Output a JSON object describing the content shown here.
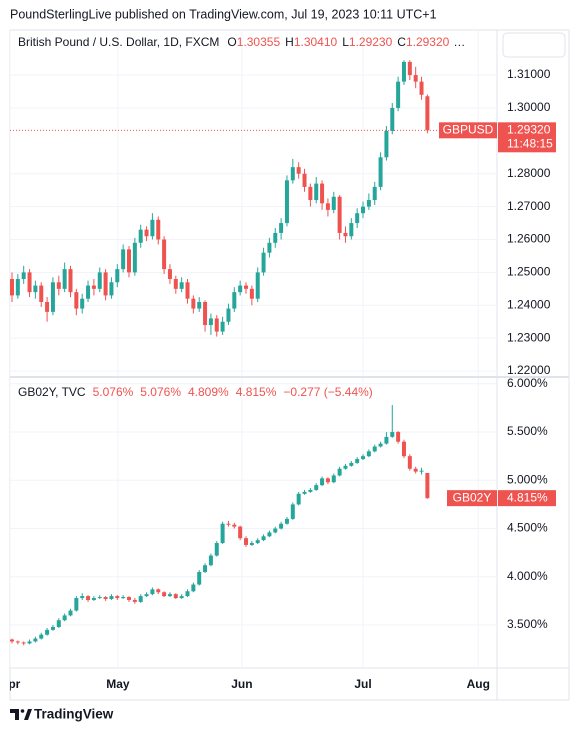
{
  "header": {
    "published": "PoundSterlingLive published on TradingView.com, Jul 19, 2023 10:11 UTC+1",
    "brand": "TradingView"
  },
  "chart_data": [
    {
      "type": "candlestick",
      "title": "British Pound / U.S. Dollar, 1D, FXCM",
      "legend": [
        {
          "key": "O",
          "value": "1.30355"
        },
        {
          "key": "H",
          "value": "1.30410"
        },
        {
          "key": "L",
          "value": "1.29230"
        },
        {
          "key": "C",
          "value": "1.29320"
        }
      ],
      "legend_more": "…",
      "up_color": "#26a69a",
      "down_color": "#ef5350",
      "grid": true,
      "price_line": true,
      "xlim": [
        -0.34,
        82.9
      ],
      "ylim": [
        1.2185,
        1.3237
      ],
      "yticks": [
        {
          "value": 1.22,
          "label": "1.22000"
        },
        {
          "value": 1.23,
          "label": "1.23000"
        },
        {
          "value": 1.24,
          "label": "1.24000"
        },
        {
          "value": 1.25,
          "label": "1.25000"
        },
        {
          "value": 1.26,
          "label": "1.26000"
        },
        {
          "value": 1.27,
          "label": "1.27000"
        },
        {
          "value": 1.28,
          "label": "1.28000"
        },
        {
          "value": 1.3,
          "label": "1.30000"
        },
        {
          "value": 1.31,
          "label": "1.31000"
        }
      ],
      "last_price": {
        "symbol": "GBPUSD",
        "label": "1.29320",
        "countdown": "11:48:15"
      },
      "ohlc": [
        [
          1.248,
          1.25,
          1.241,
          1.243
        ],
        [
          1.243,
          1.2495,
          1.242,
          1.248
        ],
        [
          1.248,
          1.252,
          1.2465,
          1.25
        ],
        [
          1.25,
          1.251,
          1.2425,
          1.244
        ],
        [
          1.244,
          1.2475,
          1.242,
          1.246
        ],
        [
          1.246,
          1.247,
          1.2395,
          1.241
        ],
        [
          1.241,
          1.2425,
          1.235,
          1.238
        ],
        [
          1.238,
          1.2485,
          1.237,
          1.247
        ],
        [
          1.247,
          1.249,
          1.243,
          1.245
        ],
        [
          1.245,
          1.253,
          1.244,
          1.251
        ],
        [
          1.251,
          1.252,
          1.2425,
          1.244
        ],
        [
          1.244,
          1.245,
          1.237,
          1.239
        ],
        [
          1.239,
          1.2435,
          1.2375,
          1.242
        ],
        [
          1.242,
          1.2475,
          1.241,
          1.246
        ],
        [
          1.246,
          1.248,
          1.243,
          1.245
        ],
        [
          1.245,
          1.2515,
          1.244,
          1.25
        ],
        [
          1.25,
          1.251,
          1.2415,
          1.243
        ],
        [
          1.243,
          1.2485,
          1.242,
          1.247
        ],
        [
          1.247,
          1.2525,
          1.2455,
          1.251
        ],
        [
          1.251,
          1.2585,
          1.25,
          1.257
        ],
        [
          1.257,
          1.258,
          1.2485,
          1.25
        ],
        [
          1.25,
          1.2605,
          1.249,
          1.259
        ],
        [
          1.259,
          1.2645,
          1.2575,
          1.263
        ],
        [
          1.263,
          1.264,
          1.2595,
          1.261
        ],
        [
          1.261,
          1.268,
          1.26,
          1.266
        ],
        [
          1.266,
          1.267,
          1.2585,
          1.26
        ],
        [
          1.26,
          1.261,
          1.2495,
          1.251
        ],
        [
          1.251,
          1.2525,
          1.2465,
          1.248
        ],
        [
          1.248,
          1.249,
          1.2435,
          1.245
        ],
        [
          1.245,
          1.2485,
          1.244,
          1.247
        ],
        [
          1.247,
          1.248,
          1.2405,
          1.242
        ],
        [
          1.242,
          1.243,
          1.2375,
          1.239
        ],
        [
          1.239,
          1.2425,
          1.238,
          1.241
        ],
        [
          1.241,
          1.2415,
          1.232,
          1.234
        ],
        [
          1.234,
          1.2375,
          1.231,
          1.236
        ],
        [
          1.236,
          1.237,
          1.2305,
          1.232
        ],
        [
          1.232,
          1.2365,
          1.231,
          1.235
        ],
        [
          1.235,
          1.2405,
          1.234,
          1.239
        ],
        [
          1.239,
          1.2455,
          1.238,
          1.244
        ],
        [
          1.244,
          1.2475,
          1.243,
          1.246
        ],
        [
          1.246,
          1.247,
          1.2435,
          1.245
        ],
        [
          1.245,
          1.246,
          1.24,
          1.242
        ],
        [
          1.242,
          1.2515,
          1.241,
          1.25
        ],
        [
          1.25,
          1.2575,
          1.249,
          1.256
        ],
        [
          1.256,
          1.2605,
          1.2545,
          1.259
        ],
        [
          1.259,
          1.2635,
          1.2575,
          1.262
        ],
        [
          1.262,
          1.2665,
          1.26,
          1.265
        ],
        [
          1.265,
          1.2795,
          1.264,
          1.278
        ],
        [
          1.278,
          1.2845,
          1.277,
          1.282
        ],
        [
          1.282,
          1.2835,
          1.2785,
          1.28
        ],
        [
          1.28,
          1.2815,
          1.2745,
          1.276
        ],
        [
          1.276,
          1.277,
          1.27,
          1.272
        ],
        [
          1.272,
          1.279,
          1.271,
          1.277
        ],
        [
          1.277,
          1.278,
          1.269,
          1.271
        ],
        [
          1.271,
          1.2725,
          1.267,
          1.269
        ],
        [
          1.269,
          1.2745,
          1.268,
          1.273
        ],
        [
          1.273,
          1.2735,
          1.26,
          1.262
        ],
        [
          1.262,
          1.264,
          1.259,
          1.261
        ],
        [
          1.261,
          1.2665,
          1.26,
          1.265
        ],
        [
          1.265,
          1.2695,
          1.2635,
          1.268
        ],
        [
          1.268,
          1.2715,
          1.2665,
          1.27
        ],
        [
          1.27,
          1.274,
          1.269,
          1.272
        ],
        [
          1.272,
          1.2775,
          1.2705,
          1.276
        ],
        [
          1.276,
          1.2865,
          1.275,
          1.285
        ],
        [
          1.285,
          1.2945,
          1.284,
          1.293
        ],
        [
          1.293,
          1.3015,
          1.292,
          1.3
        ],
        [
          1.3,
          1.3095,
          1.299,
          1.308
        ],
        [
          1.308,
          1.3145,
          1.307,
          1.314
        ],
        [
          1.314,
          1.3145,
          1.3085,
          1.31
        ],
        [
          1.31,
          1.3125,
          1.306,
          1.308
        ],
        [
          1.308,
          1.3095,
          1.3025,
          1.304
        ],
        [
          1.30355,
          1.3041,
          1.2923,
          1.2932
        ]
      ]
    },
    {
      "type": "candlestick",
      "title": "GB02Y, TVC",
      "legend": [
        "5.076%",
        "5.076%",
        "4.809%",
        "4.815%",
        "−0.277 (−5.44%)"
      ],
      "up_color": "#26a69a",
      "down_color": "#ef5350",
      "grid": true,
      "price_line": false,
      "xlim": [
        -0.34,
        82.9
      ],
      "ylim": [
        3.055,
        6.06
      ],
      "yticks": [
        {
          "value": 3.5,
          "label": "3.500%"
        },
        {
          "value": 4,
          "label": "4.000%"
        },
        {
          "value": 4.5,
          "label": "4.500%"
        },
        {
          "value": 5,
          "label": "5.000%"
        },
        {
          "value": 5.5,
          "label": "5.500%"
        },
        {
          "value": 6,
          "label": "6.000%"
        }
      ],
      "xticks": [
        {
          "value": -0.34,
          "label": "Apr"
        },
        {
          "value": 18.1,
          "label": "May"
        },
        {
          "value": 39.3,
          "label": "Jun"
        },
        {
          "value": 60,
          "label": "Jul"
        },
        {
          "value": 79.7,
          "label": "Aug"
        }
      ],
      "last_price": {
        "symbol": "GB02Y",
        "label": "4.815%"
      },
      "ohlc": [
        [
          3.35,
          3.36,
          3.31,
          3.33
        ],
        [
          3.33,
          3.34,
          3.3,
          3.32
        ],
        [
          3.32,
          3.33,
          3.29,
          3.31
        ],
        [
          3.31,
          3.35,
          3.3,
          3.33
        ],
        [
          3.33,
          3.38,
          3.32,
          3.36
        ],
        [
          3.36,
          3.42,
          3.35,
          3.4
        ],
        [
          3.4,
          3.47,
          3.39,
          3.45
        ],
        [
          3.45,
          3.5,
          3.44,
          3.48
        ],
        [
          3.48,
          3.57,
          3.47,
          3.55
        ],
        [
          3.55,
          3.62,
          3.54,
          3.6
        ],
        [
          3.6,
          3.67,
          3.59,
          3.65
        ],
        [
          3.65,
          3.8,
          3.64,
          3.78
        ],
        [
          3.78,
          3.83,
          3.76,
          3.8
        ],
        [
          3.8,
          3.81,
          3.74,
          3.76
        ],
        [
          3.76,
          3.8,
          3.75,
          3.78
        ],
        [
          3.78,
          3.81,
          3.77,
          3.79
        ],
        [
          3.79,
          3.8,
          3.75,
          3.77
        ],
        [
          3.77,
          3.82,
          3.76,
          3.8
        ],
        [
          3.8,
          3.81,
          3.76,
          3.78
        ],
        [
          3.78,
          3.81,
          3.77,
          3.79
        ],
        [
          3.79,
          3.8,
          3.74,
          3.76
        ],
        [
          3.76,
          3.78,
          3.72,
          3.74
        ],
        [
          3.74,
          3.82,
          3.73,
          3.8
        ],
        [
          3.8,
          3.84,
          3.79,
          3.82
        ],
        [
          3.82,
          3.89,
          3.81,
          3.87
        ],
        [
          3.87,
          3.88,
          3.82,
          3.84
        ],
        [
          3.84,
          3.85,
          3.79,
          3.8
        ],
        [
          3.8,
          3.84,
          3.79,
          3.82
        ],
        [
          3.82,
          3.83,
          3.77,
          3.78
        ],
        [
          3.78,
          3.82,
          3.77,
          3.8
        ],
        [
          3.8,
          3.87,
          3.79,
          3.85
        ],
        [
          3.85,
          3.94,
          3.84,
          3.92
        ],
        [
          3.92,
          4.07,
          3.91,
          4.05
        ],
        [
          4.05,
          4.14,
          4.04,
          4.12
        ],
        [
          4.12,
          4.24,
          4.11,
          4.22
        ],
        [
          4.22,
          4.37,
          4.21,
          4.35
        ],
        [
          4.35,
          4.57,
          4.34,
          4.55
        ],
        [
          4.55,
          4.58,
          4.52,
          4.54
        ],
        [
          4.54,
          4.56,
          4.5,
          4.52
        ],
        [
          4.52,
          4.53,
          4.38,
          4.4
        ],
        [
          4.4,
          4.42,
          4.31,
          4.33
        ],
        [
          4.33,
          4.37,
          4.32,
          4.35
        ],
        [
          4.35,
          4.4,
          4.34,
          4.38
        ],
        [
          4.38,
          4.44,
          4.37,
          4.42
        ],
        [
          4.42,
          4.48,
          4.41,
          4.46
        ],
        [
          4.46,
          4.52,
          4.45,
          4.5
        ],
        [
          4.5,
          4.57,
          4.49,
          4.55
        ],
        [
          4.55,
          4.62,
          4.54,
          4.6
        ],
        [
          4.6,
          4.77,
          4.59,
          4.75
        ],
        [
          4.75,
          4.88,
          4.74,
          4.86
        ],
        [
          4.86,
          4.9,
          4.85,
          4.88
        ],
        [
          4.88,
          4.92,
          4.87,
          4.9
        ],
        [
          4.9,
          4.97,
          4.89,
          4.95
        ],
        [
          4.95,
          5.04,
          4.94,
          5.02
        ],
        [
          5.02,
          5.03,
          4.96,
          4.98
        ],
        [
          4.98,
          5.07,
          4.97,
          5.05
        ],
        [
          5.05,
          5.14,
          5.04,
          5.12
        ],
        [
          5.12,
          5.17,
          5.11,
          5.15
        ],
        [
          5.15,
          5.2,
          5.14,
          5.18
        ],
        [
          5.18,
          5.24,
          5.17,
          5.22
        ],
        [
          5.22,
          5.27,
          5.21,
          5.25
        ],
        [
          5.25,
          5.32,
          5.24,
          5.3
        ],
        [
          5.3,
          5.37,
          5.29,
          5.35
        ],
        [
          5.35,
          5.4,
          5.34,
          5.38
        ],
        [
          5.38,
          5.5,
          5.37,
          5.45
        ],
        [
          5.45,
          5.78,
          5.44,
          5.5
        ],
        [
          5.5,
          5.51,
          5.38,
          5.4
        ],
        [
          5.4,
          5.42,
          5.23,
          5.25
        ],
        [
          5.25,
          5.27,
          5.1,
          5.12
        ],
        [
          5.12,
          5.14,
          5.07,
          5.09
        ],
        [
          5.09,
          5.13,
          5.06,
          5.1
        ],
        [
          5.076,
          5.076,
          4.809,
          4.815
        ]
      ]
    }
  ]
}
